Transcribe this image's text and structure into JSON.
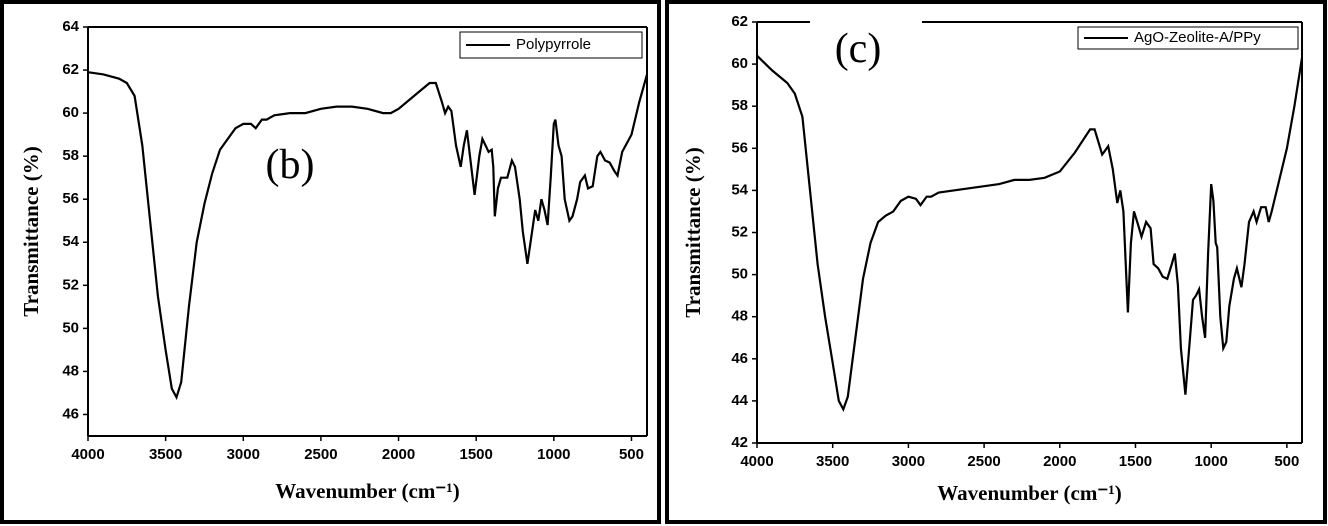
{
  "chart_data": [
    {
      "type": "line",
      "annotation": "(b)",
      "xlabel": "Wavenumber (cm⁻¹)",
      "ylabel": "Transmittance (%)",
      "xlim": [
        4000,
        400
      ],
      "xticks": [
        4000,
        3500,
        3000,
        2500,
        2000,
        1500,
        1000,
        500
      ],
      "ylim": [
        45,
        64
      ],
      "yticks": [
        46,
        48,
        50,
        52,
        54,
        56,
        58,
        60,
        62,
        64
      ],
      "legend": "upper right",
      "x": [
        4000,
        3900,
        3800,
        3750,
        3700,
        3650,
        3600,
        3550,
        3500,
        3460,
        3430,
        3400,
        3350,
        3300,
        3250,
        3200,
        3150,
        3100,
        3050,
        3000,
        2950,
        2920,
        2880,
        2850,
        2800,
        2700,
        2600,
        2500,
        2400,
        2300,
        2200,
        2100,
        2050,
        2000,
        1900,
        1800,
        1760,
        1720,
        1700,
        1680,
        1660,
        1630,
        1600,
        1580,
        1560,
        1540,
        1510,
        1480,
        1460,
        1440,
        1420,
        1400,
        1390,
        1380,
        1360,
        1340,
        1300,
        1270,
        1250,
        1220,
        1200,
        1170,
        1140,
        1120,
        1100,
        1080,
        1060,
        1040,
        1020,
        1000,
        990,
        970,
        950,
        930,
        900,
        880,
        850,
        830,
        800,
        780,
        750,
        720,
        700,
        670,
        640,
        610,
        590,
        560,
        500,
        450,
        400
      ],
      "series": [
        {
          "name": "Polypyrrole",
          "color": "#000000",
          "values": [
            61.9,
            61.8,
            61.6,
            61.4,
            60.8,
            58.5,
            55,
            51.5,
            49,
            47.2,
            46.8,
            47.5,
            51,
            54,
            55.8,
            57.2,
            58.3,
            58.8,
            59.3,
            59.5,
            59.5,
            59.3,
            59.7,
            59.7,
            59.9,
            60,
            60,
            60.2,
            60.3,
            60.3,
            60.2,
            60,
            60,
            60.2,
            60.8,
            61.4,
            61.4,
            60.5,
            60,
            60.3,
            60.1,
            58.5,
            57.5,
            58.5,
            59.2,
            58,
            56.2,
            58,
            58.8,
            58.5,
            58.2,
            58.3,
            57.5,
            55.2,
            56.5,
            57,
            57,
            57.8,
            57.5,
            56,
            54.5,
            53,
            54.5,
            55.5,
            55,
            56,
            55.5,
            54.8,
            57,
            59.5,
            59.7,
            58.5,
            58,
            56,
            55,
            55.2,
            56,
            56.8,
            57.1,
            56.5,
            56.6,
            58,
            58.2,
            57.8,
            57.7,
            57.3,
            57.1,
            58.2,
            59,
            60.5,
            61.8
          ]
        }
      ]
    },
    {
      "type": "line",
      "annotation": "(c)",
      "xlabel": "Wavenumber (cm⁻¹)",
      "ylabel": "Transmittance (%)",
      "xlim": [
        4000,
        400
      ],
      "xticks": [
        4000,
        3500,
        3000,
        2500,
        2000,
        1500,
        1000,
        500
      ],
      "ylim": [
        42,
        62
      ],
      "yticks": [
        42,
        44,
        46,
        48,
        50,
        52,
        54,
        56,
        58,
        60,
        62
      ],
      "legend": "upper right",
      "x": [
        4000,
        3900,
        3800,
        3750,
        3700,
        3650,
        3600,
        3550,
        3500,
        3460,
        3430,
        3400,
        3350,
        3300,
        3250,
        3200,
        3150,
        3100,
        3050,
        3000,
        2950,
        2920,
        2880,
        2850,
        2800,
        2600,
        2400,
        2300,
        2200,
        2100,
        2000,
        1900,
        1800,
        1770,
        1720,
        1680,
        1650,
        1620,
        1600,
        1580,
        1550,
        1530,
        1510,
        1480,
        1460,
        1430,
        1400,
        1380,
        1350,
        1320,
        1290,
        1260,
        1240,
        1220,
        1200,
        1170,
        1140,
        1120,
        1100,
        1080,
        1060,
        1040,
        1020,
        1000,
        985,
        970,
        960,
        940,
        920,
        900,
        880,
        850,
        830,
        800,
        780,
        750,
        720,
        700,
        670,
        640,
        620,
        600,
        550,
        500,
        450,
        400
      ],
      "series": [
        {
          "name": "AgO-Zeolite-A/PPy",
          "color": "#000000",
          "values": [
            60.4,
            59.7,
            59.1,
            58.6,
            57.5,
            54,
            50.5,
            48,
            45.8,
            44,
            43.6,
            44.2,
            47,
            49.8,
            51.5,
            52.5,
            52.8,
            53,
            53.5,
            53.7,
            53.6,
            53.3,
            53.7,
            53.7,
            53.9,
            54.1,
            54.3,
            54.5,
            54.5,
            54.6,
            54.9,
            55.8,
            56.9,
            56.9,
            55.7,
            56.1,
            55,
            53.4,
            54,
            53,
            48.2,
            51.5,
            53,
            52.3,
            51.8,
            52.5,
            52.2,
            50.5,
            50.3,
            49.9,
            49.8,
            50.5,
            51,
            49.5,
            46.5,
            44.3,
            47,
            48.8,
            49,
            49.3,
            48,
            47,
            51,
            54.3,
            53.5,
            51.5,
            51.3,
            48,
            46.5,
            46.8,
            48.5,
            49.8,
            50.3,
            49.4,
            50.5,
            52.5,
            53,
            52.5,
            53.2,
            53.2,
            52.5,
            53,
            54.5,
            56,
            58,
            60.3
          ]
        }
      ]
    }
  ]
}
